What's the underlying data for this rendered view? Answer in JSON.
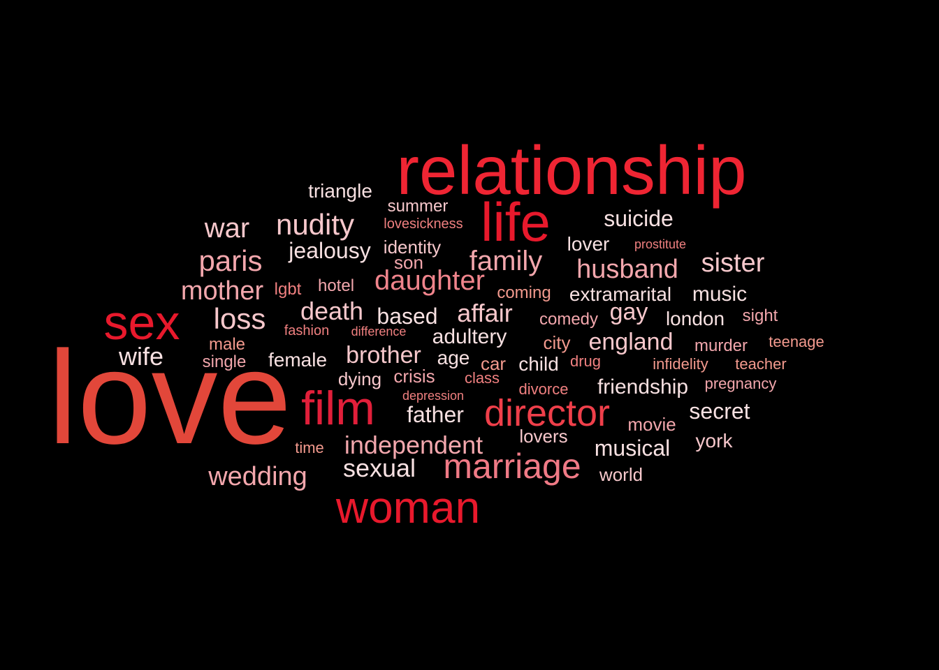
{
  "colors": {
    "background": "#000000",
    "red": "#e8192c",
    "brightred": "#ef2533",
    "crimson": "#e11f3a",
    "orangered": "#e2473a",
    "pink": "#f3a7ad",
    "lightpink": "#f7c8cc",
    "salmon": "#f08080",
    "coral": "#f39a8e",
    "white": "#f8e1e2"
  },
  "words": [
    {
      "key": "love",
      "text": "love",
      "color": "#e2473a"
    },
    {
      "key": "relationship",
      "text": "relationship",
      "color": "#ef2533"
    },
    {
      "key": "life",
      "text": "life",
      "color": "#e8192c"
    },
    {
      "key": "sex",
      "text": "sex",
      "color": "#e8192c"
    },
    {
      "key": "film",
      "text": "film",
      "color": "#e11f3a"
    },
    {
      "key": "woman",
      "text": "woman",
      "color": "#e8192c"
    },
    {
      "key": "director",
      "text": "director",
      "color": "#ef3f4a"
    },
    {
      "key": "marriage",
      "text": "marriage",
      "color": "#f07a86"
    },
    {
      "key": "daughter",
      "text": "daughter",
      "color": "#f0848c"
    },
    {
      "key": "loss",
      "text": "loss",
      "color": "#f7c8cc"
    },
    {
      "key": "paris",
      "text": "paris",
      "color": "#f3a7ad"
    },
    {
      "key": "nudity",
      "text": "nudity",
      "color": "#f7c8cc"
    },
    {
      "key": "family",
      "text": "family",
      "color": "#f3a7ad"
    },
    {
      "key": "war",
      "text": "war",
      "color": "#f7c8cc"
    },
    {
      "key": "mother",
      "text": "mother",
      "color": "#f3a7ad"
    },
    {
      "key": "husband",
      "text": "husband",
      "color": "#f3a7ad"
    },
    {
      "key": "sister",
      "text": "sister",
      "color": "#f7c8cc"
    },
    {
      "key": "death",
      "text": "death",
      "color": "#f7c8cc"
    },
    {
      "key": "affair",
      "text": "affair",
      "color": "#f7c8cc"
    },
    {
      "key": "england",
      "text": "england",
      "color": "#f7c8cc"
    },
    {
      "key": "brother",
      "text": "brother",
      "color": "#f7c8cc"
    },
    {
      "key": "sexual",
      "text": "sexual",
      "color": "#f8e1e2"
    },
    {
      "key": "independent",
      "text": "independent",
      "color": "#f3a7ad"
    },
    {
      "key": "wedding",
      "text": "wedding",
      "color": "#f3a7ad"
    },
    {
      "key": "wife",
      "text": "wife",
      "color": "#f8e1e2"
    },
    {
      "key": "suicide",
      "text": "suicide",
      "color": "#f8e1e2"
    },
    {
      "key": "jealousy",
      "text": "jealousy",
      "color": "#f8e1e2"
    },
    {
      "key": "based",
      "text": "based",
      "color": "#f8e1e2"
    },
    {
      "key": "gay",
      "text": "gay",
      "color": "#f7c8cc"
    },
    {
      "key": "secret",
      "text": "secret",
      "color": "#f8e1e2"
    },
    {
      "key": "musical",
      "text": "musical",
      "color": "#f8e1e2"
    },
    {
      "key": "friendship",
      "text": "friendship",
      "color": "#f8e1e2"
    },
    {
      "key": "father",
      "text": "father",
      "color": "#f8e1e2"
    },
    {
      "key": "adultery",
      "text": "adultery",
      "color": "#f8e1e2"
    },
    {
      "key": "music",
      "text": "music",
      "color": "#f8e1e2"
    },
    {
      "key": "extramarital",
      "text": "extramarital",
      "color": "#f8e1e2"
    },
    {
      "key": "london",
      "text": "london",
      "color": "#f8e1e2"
    },
    {
      "key": "female",
      "text": "female",
      "color": "#f8e1e2"
    },
    {
      "key": "lover",
      "text": "lover",
      "color": "#f8e1e2"
    },
    {
      "key": "child",
      "text": "child",
      "color": "#f8e1e2"
    },
    {
      "key": "triangle",
      "text": "triangle",
      "color": "#f8e1e2"
    },
    {
      "key": "york",
      "text": "york",
      "color": "#f7c8cc"
    },
    {
      "key": "age",
      "text": "age",
      "color": "#f8e1e2"
    },
    {
      "key": "dying",
      "text": "dying",
      "color": "#f7c8cc"
    },
    {
      "key": "identity",
      "text": "identity",
      "color": "#f7c8cc"
    },
    {
      "key": "movie",
      "text": "movie",
      "color": "#f3a7ad"
    },
    {
      "key": "son",
      "text": "son",
      "color": "#f3a7ad"
    },
    {
      "key": "crisis",
      "text": "crisis",
      "color": "#f3a7ad"
    },
    {
      "key": "car",
      "text": "car",
      "color": "#f39a8e"
    },
    {
      "key": "city",
      "text": "city",
      "color": "#f39a8e"
    },
    {
      "key": "world",
      "text": "world",
      "color": "#f7c8cc"
    },
    {
      "key": "hotel",
      "text": "hotel",
      "color": "#f3a7ad"
    },
    {
      "key": "lovers",
      "text": "lovers",
      "color": "#f7c8cc"
    },
    {
      "key": "summer",
      "text": "summer",
      "color": "#f7c8cc"
    },
    {
      "key": "coming",
      "text": "coming",
      "color": "#f39a8e"
    },
    {
      "key": "comedy",
      "text": "comedy",
      "color": "#f3a7ad"
    },
    {
      "key": "sight",
      "text": "sight",
      "color": "#f3a7ad"
    },
    {
      "key": "male",
      "text": "male",
      "color": "#f39a8e"
    },
    {
      "key": "single",
      "text": "single",
      "color": "#f3a7ad"
    },
    {
      "key": "murder",
      "text": "murder",
      "color": "#f3a7ad"
    },
    {
      "key": "lgbt",
      "text": "lgbt",
      "color": "#f08080"
    },
    {
      "key": "drug",
      "text": "drug",
      "color": "#f08080"
    },
    {
      "key": "infidelity",
      "text": "infidelity",
      "color": "#f39a8e"
    },
    {
      "key": "teacher",
      "text": "teacher",
      "color": "#f39a8e"
    },
    {
      "key": "teenage",
      "text": "teenage",
      "color": "#f39a8e"
    },
    {
      "key": "pregnancy",
      "text": "pregnancy",
      "color": "#f3a7ad"
    },
    {
      "key": "time",
      "text": "time",
      "color": "#f39a8e"
    },
    {
      "key": "class",
      "text": "class",
      "color": "#f08080"
    },
    {
      "key": "divorce",
      "text": "divorce",
      "color": "#f08080"
    },
    {
      "key": "fashion",
      "text": "fashion",
      "color": "#f08080"
    },
    {
      "key": "difference",
      "text": "difference",
      "color": "#f08080"
    },
    {
      "key": "depression",
      "text": "depression",
      "color": "#f08080"
    },
    {
      "key": "lovesickness",
      "text": "lovesickness",
      "color": "#f08080"
    },
    {
      "key": "prostitute",
      "text": "prostitute",
      "color": "#f08080"
    }
  ]
}
